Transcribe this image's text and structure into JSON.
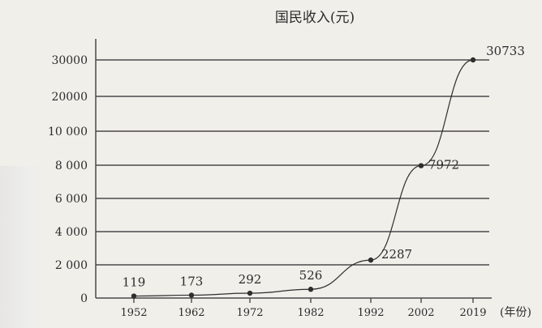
{
  "chart_data": {
    "type": "line",
    "title": "国民收入(元)",
    "xlabel": "(年份)",
    "ylabel": "",
    "categories": [
      "1952",
      "1962",
      "1972",
      "1982",
      "1992",
      "2002",
      "2019"
    ],
    "y_tick_labels": [
      "0",
      "2 000",
      "4 000",
      "6 000",
      "8 000",
      "10 000",
      "20000",
      "30000"
    ],
    "series": [
      {
        "values": [
          119,
          173,
          292,
          526,
          2287,
          7972,
          30733
        ],
        "data_labels": [
          "119",
          "173",
          "292",
          "526",
          "2287",
          "7972",
          "30733"
        ]
      }
    ],
    "y_scale": "broken",
    "grid": true,
    "legend": "none"
  },
  "colors": {
    "line": "#2e2e2e",
    "grid": "#4a4a4a",
    "text": "#2b2b2b",
    "background": "#f1efea"
  }
}
